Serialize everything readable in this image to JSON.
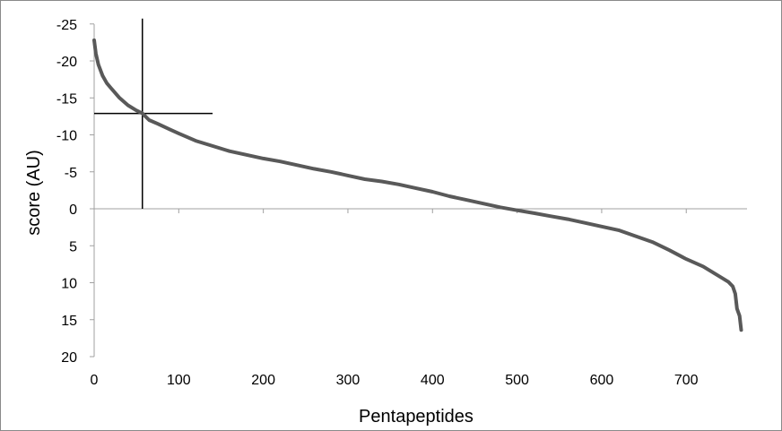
{
  "chart_data": {
    "type": "line",
    "title": "",
    "xlabel": "Pentapeptides",
    "ylabel": "score (AU)",
    "xlim": [
      0,
      770
    ],
    "ylim": [
      20,
      -25
    ],
    "y_axis_reversed": true,
    "grid": false,
    "legend": "none",
    "x_tick_labels": [
      "0",
      "100",
      "200",
      "300",
      "400",
      "500",
      "600",
      "700"
    ],
    "x_tick_values": [
      0,
      100,
      200,
      300,
      400,
      500,
      600,
      700
    ],
    "y_tick_labels": [
      "-25",
      "-20",
      "-15",
      "-10",
      "-5",
      "0",
      "5",
      "10",
      "15",
      "20"
    ],
    "y_tick_values": [
      -25,
      -20,
      -15,
      -10,
      -5,
      0,
      5,
      10,
      15,
      20
    ],
    "series": [
      {
        "color": "#595959",
        "x": [
          0,
          2,
          5,
          10,
          15,
          20,
          30,
          40,
          50,
          57,
          65,
          75,
          90,
          100,
          120,
          140,
          160,
          180,
          200,
          220,
          240,
          260,
          280,
          300,
          320,
          340,
          360,
          380,
          400,
          420,
          440,
          460,
          480,
          500,
          520,
          540,
          560,
          580,
          600,
          620,
          640,
          660,
          680,
          700,
          720,
          740,
          750,
          755,
          758,
          760,
          763,
          765
        ],
        "y": [
          -22.8,
          -21.0,
          -19.5,
          -18.0,
          -17.0,
          -16.3,
          -15.0,
          -14.0,
          -13.3,
          -12.9,
          -12.0,
          -11.5,
          -10.7,
          -10.2,
          -9.2,
          -8.5,
          -7.8,
          -7.3,
          -6.8,
          -6.4,
          -5.9,
          -5.4,
          -5.0,
          -4.5,
          -4.0,
          -3.7,
          -3.3,
          -2.8,
          -2.3,
          -1.7,
          -1.2,
          -0.7,
          -0.2,
          0.2,
          0.6,
          1.0,
          1.4,
          1.9,
          2.4,
          2.9,
          3.7,
          4.5,
          5.6,
          6.8,
          7.8,
          9.2,
          9.9,
          10.5,
          11.5,
          13.5,
          14.5,
          16.4
        ]
      }
    ],
    "annotations": {
      "crosshair_x": 57,
      "crosshair_y": -12.9,
      "vertical_line_y_range": [
        -25,
        0
      ],
      "horizontal_line_x_range": [
        0,
        140
      ]
    }
  }
}
